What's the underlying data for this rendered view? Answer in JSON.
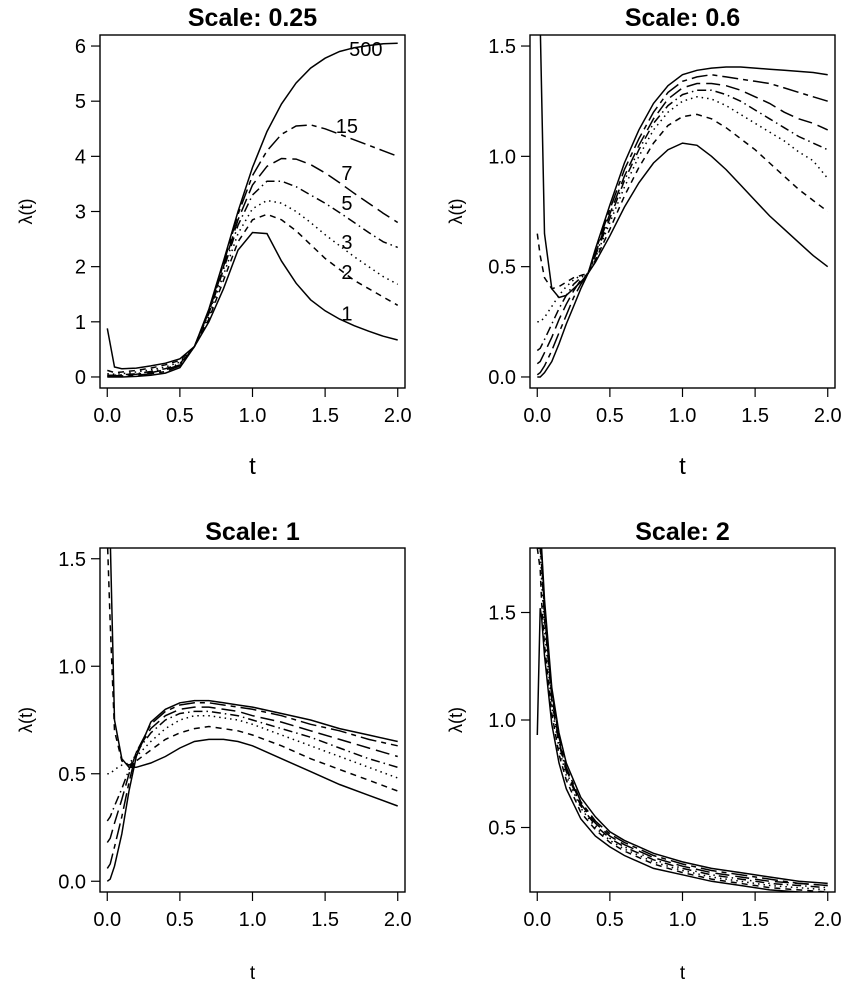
{
  "chart_data": [
    {
      "type": "line",
      "title": "Scale: 0.25",
      "xlabel": "t",
      "ylabel": "λ(t)",
      "xlim": [
        -0.05,
        2.05
      ],
      "ylim": [
        -0.2,
        6.2
      ],
      "xticks": [
        0.0,
        0.5,
        1.0,
        1.5,
        2.0
      ],
      "xtick_labels": [
        "0.0",
        "0.5",
        "1.0",
        "1.5",
        "2.0"
      ],
      "yticks": [
        0,
        1,
        2,
        3,
        4,
        5,
        6
      ],
      "ytick_labels": [
        "0",
        "1",
        "2",
        "3",
        "4",
        "5",
        "6"
      ],
      "x": [
        0.0,
        0.05,
        0.1,
        0.2,
        0.3,
        0.4,
        0.5,
        0.6,
        0.7,
        0.8,
        0.9,
        1.0,
        1.1,
        1.2,
        1.3,
        1.4,
        1.5,
        1.6,
        1.7,
        1.8,
        1.9,
        2.0
      ],
      "series": [
        {
          "name": "1",
          "dash": "solid",
          "values": [
            0.88,
            0.18,
            0.15,
            0.16,
            0.2,
            0.25,
            0.33,
            0.55,
            1.0,
            1.6,
            2.3,
            2.62,
            2.6,
            2.1,
            1.7,
            1.4,
            1.2,
            1.05,
            0.93,
            0.83,
            0.74,
            0.67
          ]
        },
        {
          "name": "2",
          "dash": "dashed",
          "values": [
            0.12,
            0.08,
            0.09,
            0.12,
            0.16,
            0.22,
            0.3,
            0.55,
            1.05,
            1.75,
            2.45,
            2.85,
            2.95,
            2.85,
            2.65,
            2.4,
            2.15,
            1.95,
            1.75,
            1.6,
            1.45,
            1.3
          ]
        },
        {
          "name": "3",
          "dash": "dotted",
          "values": [
            0.06,
            0.05,
            0.06,
            0.09,
            0.13,
            0.18,
            0.27,
            0.55,
            1.1,
            1.85,
            2.6,
            3.05,
            3.2,
            3.15,
            3.0,
            2.8,
            2.58,
            2.38,
            2.18,
            2.0,
            1.82,
            1.68
          ]
        },
        {
          "name": "5",
          "dash": "dashdot",
          "values": [
            0.03,
            0.03,
            0.04,
            0.06,
            0.1,
            0.15,
            0.24,
            0.55,
            1.15,
            1.95,
            2.75,
            3.3,
            3.55,
            3.55,
            3.45,
            3.3,
            3.15,
            2.98,
            2.8,
            2.62,
            2.45,
            2.35
          ]
        },
        {
          "name": "7",
          "dash": "longdash",
          "values": [
            0.02,
            0.02,
            0.03,
            0.05,
            0.08,
            0.13,
            0.22,
            0.55,
            1.18,
            2.0,
            2.85,
            3.48,
            3.82,
            3.96,
            3.95,
            3.85,
            3.7,
            3.52,
            3.33,
            3.15,
            2.97,
            2.8
          ]
        },
        {
          "name": "15",
          "dash": "twodash",
          "values": [
            0.01,
            0.01,
            0.02,
            0.03,
            0.06,
            0.1,
            0.2,
            0.55,
            1.2,
            2.05,
            2.95,
            3.65,
            4.1,
            4.4,
            4.55,
            4.57,
            4.5,
            4.4,
            4.3,
            4.2,
            4.1,
            4.0
          ]
        },
        {
          "name": "500",
          "dash": "solid",
          "values": [
            0.0,
            0.0,
            0.0,
            0.01,
            0.03,
            0.07,
            0.17,
            0.55,
            1.23,
            2.1,
            3.0,
            3.8,
            4.45,
            4.95,
            5.33,
            5.6,
            5.78,
            5.9,
            5.97,
            6.01,
            6.04,
            6.05
          ]
        }
      ],
      "curve_labels": [
        {
          "text": "500",
          "x": 1.78,
          "y": 5.95
        },
        {
          "text": "15",
          "x": 1.65,
          "y": 4.55
        },
        {
          "text": "7",
          "x": 1.65,
          "y": 3.7
        },
        {
          "text": "5",
          "x": 1.65,
          "y": 3.15
        },
        {
          "text": "3",
          "x": 1.65,
          "y": 2.45
        },
        {
          "text": "2",
          "x": 1.65,
          "y": 1.9
        },
        {
          "text": "1",
          "x": 1.65,
          "y": 1.15
        }
      ]
    },
    {
      "type": "line",
      "title": "Scale: 0.6",
      "xlabel": "t",
      "ylabel": "λ(t)",
      "xlim": [
        -0.05,
        2.05
      ],
      "ylim": [
        -0.05,
        1.55
      ],
      "xticks": [
        0.0,
        0.5,
        1.0,
        1.5,
        2.0
      ],
      "xtick_labels": [
        "0.0",
        "0.5",
        "1.0",
        "1.5",
        "2.0"
      ],
      "yticks": [
        0.0,
        0.5,
        1.0,
        1.5
      ],
      "ytick_labels": [
        "0.0",
        "0.5",
        "1.0",
        "1.5"
      ],
      "x": [
        0.0,
        0.02,
        0.05,
        0.1,
        0.15,
        0.2,
        0.25,
        0.3,
        0.35,
        0.4,
        0.5,
        0.6,
        0.7,
        0.8,
        0.9,
        1.0,
        1.1,
        1.2,
        1.3,
        1.4,
        1.5,
        1.6,
        1.7,
        1.8,
        1.9,
        2.0
      ],
      "series": [
        {
          "name": "1",
          "dash": "solid",
          "values": [
            1.6,
            1.6,
            0.65,
            0.4,
            0.36,
            0.37,
            0.4,
            0.43,
            0.47,
            0.52,
            0.64,
            0.77,
            0.88,
            0.97,
            1.03,
            1.06,
            1.05,
            1.0,
            0.94,
            0.87,
            0.8,
            0.73,
            0.67,
            0.61,
            0.55,
            0.5
          ]
        },
        {
          "name": "2",
          "dash": "dashed",
          "values": [
            0.65,
            0.55,
            0.45,
            0.4,
            0.41,
            0.43,
            0.45,
            0.46,
            0.47,
            0.53,
            0.67,
            0.82,
            0.95,
            1.06,
            1.14,
            1.18,
            1.19,
            1.17,
            1.13,
            1.08,
            1.03,
            0.97,
            0.91,
            0.85,
            0.8,
            0.75
          ]
        },
        {
          "name": "3",
          "dash": "dotted",
          "values": [
            0.25,
            0.25,
            0.27,
            0.32,
            0.37,
            0.41,
            0.44,
            0.46,
            0.47,
            0.54,
            0.7,
            0.86,
            1.0,
            1.12,
            1.2,
            1.25,
            1.27,
            1.26,
            1.23,
            1.19,
            1.15,
            1.11,
            1.07,
            1.02,
            0.98,
            0.9
          ]
        },
        {
          "name": "5",
          "dash": "dashdot",
          "values": [
            0.12,
            0.13,
            0.17,
            0.24,
            0.31,
            0.37,
            0.42,
            0.45,
            0.47,
            0.55,
            0.72,
            0.89,
            1.03,
            1.15,
            1.23,
            1.28,
            1.3,
            1.3,
            1.28,
            1.25,
            1.21,
            1.17,
            1.13,
            1.09,
            1.06,
            1.03
          ]
        },
        {
          "name": "7",
          "dash": "longdash",
          "values": [
            0.06,
            0.07,
            0.11,
            0.18,
            0.26,
            0.33,
            0.39,
            0.44,
            0.47,
            0.56,
            0.74,
            0.91,
            1.05,
            1.17,
            1.26,
            1.31,
            1.33,
            1.33,
            1.32,
            1.3,
            1.27,
            1.24,
            1.2,
            1.17,
            1.15,
            1.12
          ]
        },
        {
          "name": "15",
          "dash": "twodash",
          "values": [
            0.01,
            0.02,
            0.05,
            0.12,
            0.2,
            0.28,
            0.36,
            0.42,
            0.47,
            0.57,
            0.76,
            0.94,
            1.08,
            1.2,
            1.29,
            1.34,
            1.36,
            1.37,
            1.36,
            1.35,
            1.34,
            1.33,
            1.31,
            1.29,
            1.27,
            1.25
          ]
        },
        {
          "name": "500",
          "dash": "solid",
          "values": [
            0.0,
            0.0,
            0.02,
            0.07,
            0.15,
            0.24,
            0.32,
            0.4,
            0.47,
            0.58,
            0.78,
            0.97,
            1.12,
            1.24,
            1.32,
            1.37,
            1.39,
            1.4,
            1.405,
            1.405,
            1.4,
            1.395,
            1.39,
            1.385,
            1.38,
            1.37
          ]
        }
      ]
    },
    {
      "type": "line",
      "title": "Scale: 1",
      "xlabel": "t",
      "ylabel": "λ(t)",
      "xlim": [
        -0.05,
        2.05
      ],
      "ylim": [
        -0.05,
        1.55
      ],
      "xticks": [
        0.0,
        0.5,
        1.0,
        1.5,
        2.0
      ],
      "xtick_labels": [
        "0.0",
        "0.5",
        "1.0",
        "1.5",
        "2.0"
      ],
      "yticks": [
        0.0,
        0.5,
        1.0,
        1.5
      ],
      "ytick_labels": [
        "0.0",
        "0.5",
        "1.0",
        "1.5"
      ],
      "x": [
        0.0,
        0.02,
        0.05,
        0.1,
        0.15,
        0.2,
        0.3,
        0.4,
        0.5,
        0.6,
        0.7,
        0.8,
        0.9,
        1.0,
        1.2,
        1.4,
        1.6,
        1.8,
        2.0
      ],
      "series": [
        {
          "name": "1",
          "dash": "solid",
          "values": [
            1.6,
            1.6,
            0.75,
            0.57,
            0.53,
            0.53,
            0.55,
            0.58,
            0.62,
            0.65,
            0.66,
            0.66,
            0.65,
            0.63,
            0.57,
            0.51,
            0.45,
            0.4,
            0.35
          ]
        },
        {
          "name": "2",
          "dash": "dashed",
          "values": [
            1.6,
            1.2,
            0.7,
            0.56,
            0.54,
            0.56,
            0.61,
            0.66,
            0.69,
            0.71,
            0.72,
            0.71,
            0.7,
            0.68,
            0.63,
            0.57,
            0.52,
            0.47,
            0.42
          ]
        },
        {
          "name": "3",
          "dash": "dotted",
          "values": [
            0.5,
            0.5,
            0.52,
            0.54,
            0.55,
            0.58,
            0.65,
            0.71,
            0.75,
            0.77,
            0.77,
            0.76,
            0.75,
            0.73,
            0.68,
            0.63,
            0.58,
            0.53,
            0.48
          ]
        },
        {
          "name": "5",
          "dash": "dashdot",
          "values": [
            0.28,
            0.3,
            0.35,
            0.43,
            0.52,
            0.6,
            0.69,
            0.75,
            0.78,
            0.79,
            0.79,
            0.78,
            0.77,
            0.75,
            0.71,
            0.67,
            0.62,
            0.57,
            0.53
          ]
        },
        {
          "name": "7",
          "dash": "longdash",
          "values": [
            0.18,
            0.2,
            0.27,
            0.38,
            0.5,
            0.6,
            0.71,
            0.77,
            0.8,
            0.81,
            0.81,
            0.8,
            0.79,
            0.77,
            0.74,
            0.7,
            0.66,
            0.62,
            0.58
          ]
        },
        {
          "name": "15",
          "dash": "twodash",
          "values": [
            0.06,
            0.08,
            0.16,
            0.3,
            0.46,
            0.6,
            0.73,
            0.79,
            0.82,
            0.83,
            0.83,
            0.82,
            0.81,
            0.8,
            0.77,
            0.73,
            0.7,
            0.66,
            0.63
          ]
        },
        {
          "name": "500",
          "dash": "solid",
          "values": [
            0.0,
            0.01,
            0.07,
            0.22,
            0.42,
            0.58,
            0.74,
            0.8,
            0.83,
            0.84,
            0.84,
            0.83,
            0.82,
            0.81,
            0.78,
            0.75,
            0.71,
            0.68,
            0.65
          ]
        }
      ]
    },
    {
      "type": "line",
      "title": "Scale: 2",
      "xlabel": "t",
      "ylabel": "λ(t)",
      "xlim": [
        -0.05,
        2.05
      ],
      "ylim": [
        0.2,
        1.8
      ],
      "xticks": [
        0.0,
        0.5,
        1.0,
        1.5,
        2.0
      ],
      "xtick_labels": [
        "0.0",
        "0.5",
        "1.0",
        "1.5",
        "2.0"
      ],
      "yticks": [
        0.5,
        1.0,
        1.5
      ],
      "ytick_labels": [
        "0.5",
        "1.0",
        "1.5"
      ],
      "x": [
        0.0,
        0.02,
        0.03,
        0.05,
        0.1,
        0.15,
        0.2,
        0.3,
        0.4,
        0.5,
        0.6,
        0.8,
        1.0,
        1.2,
        1.4,
        1.6,
        1.8,
        2.0
      ],
      "series": [
        {
          "name": "1",
          "dash": "solid",
          "values": [
            0.93,
            1.52,
            1.48,
            1.3,
            0.98,
            0.8,
            0.68,
            0.54,
            0.46,
            0.41,
            0.37,
            0.31,
            0.28,
            0.25,
            0.23,
            0.21,
            0.2,
            0.19
          ]
        },
        {
          "name": "2",
          "dash": "dashed",
          "values": [
            1.8,
            1.7,
            1.55,
            1.35,
            1.03,
            0.84,
            0.72,
            0.57,
            0.49,
            0.43,
            0.39,
            0.33,
            0.29,
            0.26,
            0.24,
            0.22,
            0.21,
            0.2
          ]
        },
        {
          "name": "3",
          "dash": "dotted",
          "values": [
            1.8,
            1.8,
            1.65,
            1.42,
            1.06,
            0.87,
            0.74,
            0.59,
            0.5,
            0.44,
            0.4,
            0.34,
            0.3,
            0.27,
            0.25,
            0.23,
            0.22,
            0.21
          ]
        },
        {
          "name": "5",
          "dash": "dashdot",
          "values": [
            1.8,
            1.8,
            1.72,
            1.47,
            1.09,
            0.89,
            0.76,
            0.6,
            0.51,
            0.45,
            0.41,
            0.35,
            0.31,
            0.28,
            0.26,
            0.24,
            0.23,
            0.22
          ]
        },
        {
          "name": "7",
          "dash": "longdash",
          "values": [
            1.8,
            1.8,
            1.75,
            1.5,
            1.11,
            0.9,
            0.77,
            0.61,
            0.52,
            0.46,
            0.42,
            0.36,
            0.32,
            0.29,
            0.27,
            0.25,
            0.24,
            0.23
          ]
        },
        {
          "name": "15",
          "dash": "twodash",
          "values": [
            1.8,
            1.8,
            1.78,
            1.53,
            1.13,
            0.92,
            0.78,
            0.62,
            0.53,
            0.47,
            0.43,
            0.37,
            0.33,
            0.3,
            0.28,
            0.26,
            0.24,
            0.23
          ]
        },
        {
          "name": "500",
          "dash": "solid",
          "values": [
            1.8,
            1.8,
            1.8,
            1.56,
            1.15,
            0.94,
            0.8,
            0.64,
            0.55,
            0.48,
            0.44,
            0.38,
            0.34,
            0.31,
            0.29,
            0.27,
            0.25,
            0.24
          ]
        }
      ]
    }
  ]
}
